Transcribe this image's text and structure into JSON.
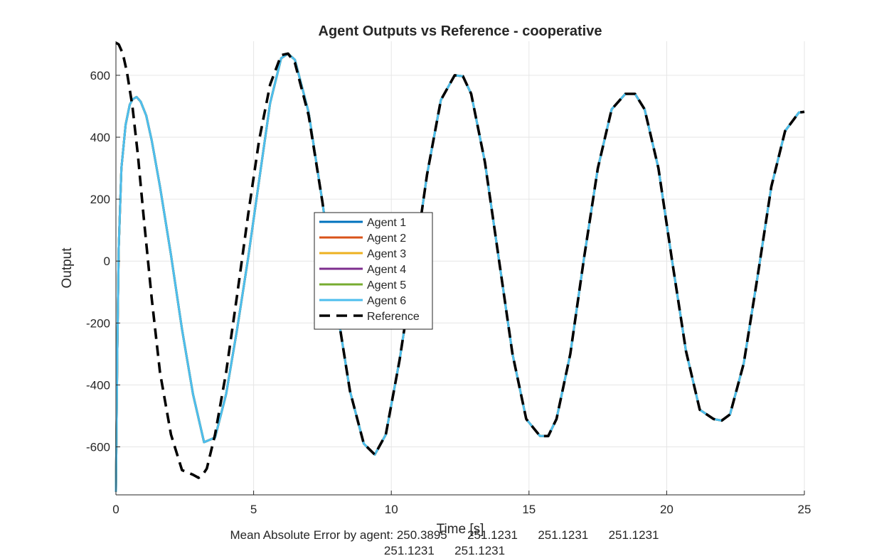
{
  "chart_data": {
    "type": "line",
    "title": "Agent Outputs vs Reference - cooperative",
    "xlabel": "Time [s]",
    "ylabel": "Output",
    "xlim": [
      0,
      25
    ],
    "ylim": [
      -755,
      710
    ],
    "xticks": [
      0,
      5,
      10,
      15,
      20,
      25
    ],
    "yticks": [
      -600,
      -400,
      -200,
      0,
      200,
      400,
      600
    ],
    "grid": true,
    "legend_position": "center",
    "series": [
      {
        "name": "Agent 1",
        "color": "#0072BD",
        "style": "solid",
        "x": [
          0,
          0.05,
          0.1,
          0.2,
          0.35,
          0.5,
          0.6,
          0.75,
          0.9,
          1.1,
          1.3,
          1.6,
          2.0,
          2.4,
          2.8,
          3.2,
          3.6,
          4.0,
          4.4,
          4.8,
          5.2,
          5.6,
          6.0,
          6.25,
          6.5,
          7.0,
          7.5,
          8.0,
          8.5,
          9.0,
          9.4,
          9.8,
          10.3,
          10.8,
          11.3,
          11.8,
          12.3,
          12.6,
          12.9,
          13.4,
          13.9,
          14.4,
          14.9,
          15.4,
          15.7,
          16.0,
          16.5,
          17.0,
          17.5,
          18.0,
          18.5,
          18.85,
          19.2,
          19.7,
          20.2,
          20.7,
          21.2,
          21.7,
          22.0,
          22.3,
          22.8,
          23.3,
          23.8,
          24.3,
          24.8,
          25.0
        ],
        "values": [
          -745,
          -300,
          40,
          300,
          440,
          505,
          522,
          530,
          515,
          470,
          390,
          240,
          20,
          -220,
          -430,
          -585,
          -570,
          -430,
          -220,
          10,
          260,
          510,
          655,
          670,
          650,
          480,
          190,
          -140,
          -420,
          -590,
          -625,
          -560,
          -320,
          -30,
          280,
          520,
          600,
          597,
          540,
          320,
          10,
          -300,
          -510,
          -565,
          -565,
          -510,
          -300,
          10,
          300,
          490,
          540,
          540,
          490,
          300,
          0,
          -290,
          -480,
          -510,
          -515,
          -495,
          -330,
          -50,
          240,
          420,
          480,
          482
        ]
      },
      {
        "name": "Agent 2",
        "color": "#D95319",
        "style": "solid",
        "x": [
          0,
          0.05,
          0.1,
          0.2,
          0.35,
          0.5,
          0.6,
          0.75,
          0.9,
          1.1,
          1.3,
          1.6,
          2.0,
          2.4,
          2.8,
          3.2,
          3.6,
          4.0,
          4.4,
          4.8,
          5.2,
          5.6,
          6.0,
          6.25,
          6.5,
          7.0,
          7.5,
          8.0,
          8.5,
          9.0,
          9.4,
          9.8,
          10.3,
          10.8,
          11.3,
          11.8,
          12.3,
          12.6,
          12.9,
          13.4,
          13.9,
          14.4,
          14.9,
          15.4,
          15.7,
          16.0,
          16.5,
          17.0,
          17.5,
          18.0,
          18.5,
          18.85,
          19.2,
          19.7,
          20.2,
          20.7,
          21.2,
          21.7,
          22.0,
          22.3,
          22.8,
          23.3,
          23.8,
          24.3,
          24.8,
          25.0
        ],
        "values": [
          -745,
          -300,
          40,
          300,
          440,
          505,
          522,
          530,
          515,
          470,
          390,
          240,
          20,
          -220,
          -430,
          -585,
          -570,
          -430,
          -220,
          10,
          260,
          510,
          655,
          670,
          650,
          480,
          190,
          -140,
          -420,
          -590,
          -625,
          -560,
          -320,
          -30,
          280,
          520,
          600,
          597,
          540,
          320,
          10,
          -300,
          -510,
          -565,
          -565,
          -510,
          -300,
          10,
          300,
          490,
          540,
          540,
          490,
          300,
          0,
          -290,
          -480,
          -510,
          -515,
          -495,
          -330,
          -50,
          240,
          420,
          480,
          482
        ]
      },
      {
        "name": "Agent 3",
        "color": "#EDB120",
        "style": "solid",
        "x": [
          0,
          0.05,
          0.1,
          0.2,
          0.35,
          0.5,
          0.6,
          0.75,
          0.9,
          1.1,
          1.3,
          1.6,
          2.0,
          2.4,
          2.8,
          3.2,
          3.6,
          4.0,
          4.4,
          4.8,
          5.2,
          5.6,
          6.0,
          6.25,
          6.5,
          7.0,
          7.5,
          8.0,
          8.5,
          9.0,
          9.4,
          9.8,
          10.3,
          10.8,
          11.3,
          11.8,
          12.3,
          12.6,
          12.9,
          13.4,
          13.9,
          14.4,
          14.9,
          15.4,
          15.7,
          16.0,
          16.5,
          17.0,
          17.5,
          18.0,
          18.5,
          18.85,
          19.2,
          19.7,
          20.2,
          20.7,
          21.2,
          21.7,
          22.0,
          22.3,
          22.8,
          23.3,
          23.8,
          24.3,
          24.8,
          25.0
        ],
        "values": [
          -745,
          -300,
          40,
          300,
          440,
          505,
          522,
          530,
          515,
          470,
          390,
          240,
          20,
          -220,
          -430,
          -585,
          -570,
          -430,
          -220,
          10,
          260,
          510,
          655,
          670,
          650,
          480,
          190,
          -140,
          -420,
          -590,
          -625,
          -560,
          -320,
          -30,
          280,
          520,
          600,
          597,
          540,
          320,
          10,
          -300,
          -510,
          -565,
          -565,
          -510,
          -300,
          10,
          300,
          490,
          540,
          540,
          490,
          300,
          0,
          -290,
          -480,
          -510,
          -515,
          -495,
          -330,
          -50,
          240,
          420,
          480,
          482
        ]
      },
      {
        "name": "Agent 4",
        "color": "#7E2F8E",
        "style": "solid",
        "x": [
          0,
          0.05,
          0.1,
          0.2,
          0.35,
          0.5,
          0.6,
          0.75,
          0.9,
          1.1,
          1.3,
          1.6,
          2.0,
          2.4,
          2.8,
          3.2,
          3.6,
          4.0,
          4.4,
          4.8,
          5.2,
          5.6,
          6.0,
          6.25,
          6.5,
          7.0,
          7.5,
          8.0,
          8.5,
          9.0,
          9.4,
          9.8,
          10.3,
          10.8,
          11.3,
          11.8,
          12.3,
          12.6,
          12.9,
          13.4,
          13.9,
          14.4,
          14.9,
          15.4,
          15.7,
          16.0,
          16.5,
          17.0,
          17.5,
          18.0,
          18.5,
          18.85,
          19.2,
          19.7,
          20.2,
          20.7,
          21.2,
          21.7,
          22.0,
          22.3,
          22.8,
          23.3,
          23.8,
          24.3,
          24.8,
          25.0
        ],
        "values": [
          -745,
          -300,
          40,
          300,
          440,
          505,
          522,
          530,
          515,
          470,
          390,
          240,
          20,
          -220,
          -430,
          -585,
          -570,
          -430,
          -220,
          10,
          260,
          510,
          655,
          670,
          650,
          480,
          190,
          -140,
          -420,
          -590,
          -625,
          -560,
          -320,
          -30,
          280,
          520,
          600,
          597,
          540,
          320,
          10,
          -300,
          -510,
          -565,
          -565,
          -510,
          -300,
          10,
          300,
          490,
          540,
          540,
          490,
          300,
          0,
          -290,
          -480,
          -510,
          -515,
          -495,
          -330,
          -50,
          240,
          420,
          480,
          482
        ]
      },
      {
        "name": "Agent 5",
        "color": "#77AC30",
        "style": "solid",
        "x": [
          0,
          0.05,
          0.1,
          0.2,
          0.35,
          0.5,
          0.6,
          0.75,
          0.9,
          1.1,
          1.3,
          1.6,
          2.0,
          2.4,
          2.8,
          3.2,
          3.6,
          4.0,
          4.4,
          4.8,
          5.2,
          5.6,
          6.0,
          6.25,
          6.5,
          7.0,
          7.5,
          8.0,
          8.5,
          9.0,
          9.4,
          9.8,
          10.3,
          10.8,
          11.3,
          11.8,
          12.3,
          12.6,
          12.9,
          13.4,
          13.9,
          14.4,
          14.9,
          15.4,
          15.7,
          16.0,
          16.5,
          17.0,
          17.5,
          18.0,
          18.5,
          18.85,
          19.2,
          19.7,
          20.2,
          20.7,
          21.2,
          21.7,
          22.0,
          22.3,
          22.8,
          23.3,
          23.8,
          24.3,
          24.8,
          25.0
        ],
        "values": [
          -745,
          -300,
          40,
          300,
          440,
          505,
          522,
          530,
          515,
          470,
          390,
          240,
          20,
          -220,
          -430,
          -585,
          -570,
          -430,
          -220,
          10,
          260,
          510,
          655,
          670,
          650,
          480,
          190,
          -140,
          -420,
          -590,
          -625,
          -560,
          -320,
          -30,
          280,
          520,
          600,
          597,
          540,
          320,
          10,
          -300,
          -510,
          -565,
          -565,
          -510,
          -300,
          10,
          300,
          490,
          540,
          540,
          490,
          300,
          0,
          -290,
          -480,
          -510,
          -515,
          -495,
          -330,
          -50,
          240,
          420,
          480,
          482
        ]
      },
      {
        "name": "Agent 6",
        "color": "#4DBEEE",
        "style": "solid",
        "x": [
          0,
          0.05,
          0.1,
          0.2,
          0.35,
          0.5,
          0.6,
          0.75,
          0.9,
          1.1,
          1.3,
          1.6,
          2.0,
          2.4,
          2.8,
          3.2,
          3.6,
          4.0,
          4.4,
          4.8,
          5.2,
          5.6,
          6.0,
          6.25,
          6.5,
          7.0,
          7.5,
          8.0,
          8.5,
          9.0,
          9.4,
          9.8,
          10.3,
          10.8,
          11.3,
          11.8,
          12.3,
          12.6,
          12.9,
          13.4,
          13.9,
          14.4,
          14.9,
          15.4,
          15.7,
          16.0,
          16.5,
          17.0,
          17.5,
          18.0,
          18.5,
          18.85,
          19.2,
          19.7,
          20.2,
          20.7,
          21.2,
          21.7,
          22.0,
          22.3,
          22.8,
          23.3,
          23.8,
          24.3,
          24.8,
          25.0
        ],
        "values": [
          -745,
          -300,
          40,
          300,
          440,
          505,
          522,
          530,
          515,
          470,
          390,
          240,
          20,
          -220,
          -430,
          -585,
          -570,
          -430,
          -220,
          10,
          260,
          510,
          655,
          670,
          650,
          480,
          190,
          -140,
          -420,
          -590,
          -625,
          -560,
          -320,
          -30,
          280,
          520,
          600,
          597,
          540,
          320,
          10,
          -300,
          -510,
          -565,
          -565,
          -510,
          -300,
          10,
          300,
          490,
          540,
          540,
          490,
          300,
          0,
          -290,
          -480,
          -510,
          -515,
          -495,
          -330,
          -50,
          240,
          420,
          480,
          482
        ]
      },
      {
        "name": "Reference",
        "color": "#000000",
        "style": "dashed",
        "x": [
          0,
          0.1,
          0.25,
          0.4,
          0.6,
          0.8,
          1.0,
          1.3,
          1.6,
          2.0,
          2.4,
          2.8,
          3.0,
          3.15,
          3.3,
          3.6,
          4.0,
          4.4,
          4.8,
          5.2,
          5.6,
          6.0,
          6.25,
          6.5,
          7.0,
          7.5,
          8.0,
          8.5,
          9.0,
          9.4,
          9.8,
          10.3,
          10.8,
          11.3,
          11.8,
          12.3,
          12.6,
          12.9,
          13.4,
          13.9,
          14.4,
          14.9,
          15.4,
          15.7,
          16.0,
          16.5,
          17.0,
          17.5,
          18.0,
          18.5,
          18.85,
          19.2,
          19.7,
          20.2,
          20.7,
          21.2,
          21.7,
          22.0,
          22.3,
          22.8,
          23.3,
          23.8,
          24.3,
          24.8,
          25.0
        ],
        "values": [
          705,
          700,
          670,
          610,
          500,
          340,
          150,
          -120,
          -360,
          -560,
          -675,
          -690,
          -700,
          -690,
          -670,
          -560,
          -360,
          -110,
          150,
          390,
          570,
          665,
          670,
          640,
          470,
          190,
          -140,
          -420,
          -590,
          -625,
          -560,
          -320,
          -30,
          280,
          520,
          600,
          597,
          540,
          320,
          10,
          -300,
          -510,
          -565,
          -565,
          -510,
          -300,
          10,
          300,
          490,
          540,
          540,
          490,
          300,
          0,
          -290,
          -480,
          -510,
          -515,
          -495,
          -330,
          -50,
          240,
          420,
          480,
          482
        ]
      }
    ]
  },
  "footer_note": {
    "line1": "Mean Absolute Error by agent: 250.3895      251.1231      251.1231      251.1231",
    "line2": "251.1231      251.1231"
  }
}
